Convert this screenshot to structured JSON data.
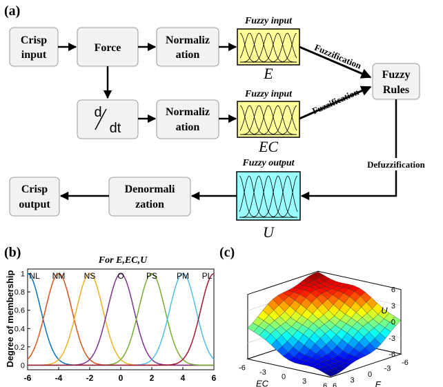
{
  "panel_labels": {
    "a": "(a)",
    "b": "(b)",
    "c": "(c)"
  },
  "diagram": {
    "crisp_input": [
      "Crisp",
      "input"
    ],
    "force": "Force",
    "deriv": {
      "num": "d",
      "den": "dt"
    },
    "normalization": [
      "Normaliz",
      "ation"
    ],
    "fuzzy_input": "Fuzzy input",
    "fuzzy_output": "Fuzzy output",
    "var_e": "E",
    "var_ec": "EC",
    "var_u": "U",
    "fuzzification": "Fuzzification",
    "fuzzy_rules": [
      "Fuzzy",
      "Rules"
    ],
    "defuzzification": "Defuzzification",
    "denormalization": [
      "Denormali",
      "zation"
    ],
    "crisp_output": [
      "Crisp",
      "output"
    ],
    "colors": {
      "box_fill": "#f2f2f2",
      "box_stroke": "#999999",
      "input_fill": "#ffff99",
      "output_fill": "#99ffff"
    }
  },
  "chart_data": [
    {
      "type": "line",
      "title": "For E,EC,U",
      "ylabel": "Degree of membership",
      "xlabel": "",
      "xlim": [
        -6,
        6
      ],
      "ylim": [
        -0.05,
        1.05
      ],
      "xticks": [
        "-6",
        "-4",
        "-2",
        "0",
        "2",
        "4",
        "6"
      ],
      "yticks": [
        "0",
        "0.2",
        "0.4",
        "0.6",
        "0.8",
        "1"
      ],
      "sigma": 0.85,
      "series": [
        {
          "name": "NL",
          "center": -6,
          "color": "#0072bd"
        },
        {
          "name": "NM",
          "center": -4,
          "color": "#d95319"
        },
        {
          "name": "NS",
          "center": -2,
          "color": "#edb120"
        },
        {
          "name": "O",
          "center": 0,
          "color": "#7e2f8e"
        },
        {
          "name": "PS",
          "center": 2,
          "color": "#77ac30"
        },
        {
          "name": "PM",
          "center": 4,
          "color": "#4dbeee"
        },
        {
          "name": "PL",
          "center": 6,
          "color": "#a2142f"
        }
      ]
    },
    {
      "type": "heatmap",
      "subtype": "surface-3d",
      "xlabel": "E",
      "ylabel": "EC",
      "zlabel": "U",
      "xlim": [
        -6,
        6
      ],
      "ylim": [
        -6,
        6
      ],
      "zlim": [
        -6,
        6
      ],
      "xticks": [
        "6",
        "3",
        "0",
        "-3",
        "-6"
      ],
      "yticks": [
        "-6",
        "-3",
        "0",
        "3",
        "6"
      ],
      "zticks": [
        "6",
        "3",
        "0",
        "-3",
        "-6"
      ],
      "surface": "U ≈ -6·tanh((E+EC)/7)"
    }
  ]
}
